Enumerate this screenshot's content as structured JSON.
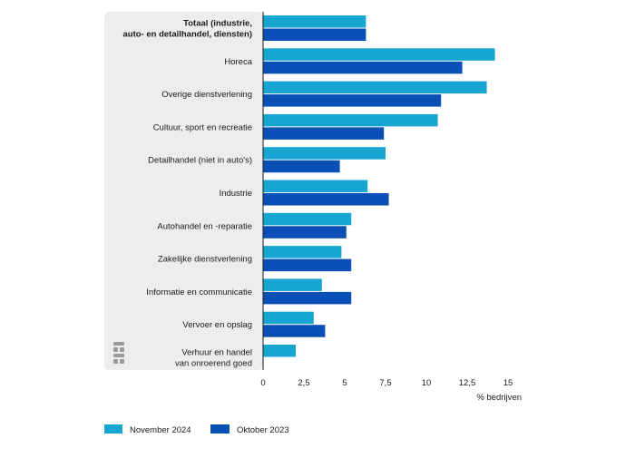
{
  "colors": {
    "series_1": "#17a6d1",
    "series_2": "#0a4fb5",
    "label_panel": "#ededed",
    "axis_line": "#1a1a1a",
    "logo": "#9a9a9a"
  },
  "logo_icon": "cbs-logo-icon",
  "chart_data": {
    "type": "bar",
    "orientation": "horizontal",
    "categories": [
      "Totaal (industrie,\nauto- en detailhandel, diensten)",
      "Horeca",
      "Overige dienstverlening",
      "Cultuur, sport en recreatie",
      "Detailhandel (niet in auto's)",
      "Industrie",
      "Autohandel en -reparatie",
      "Zakelijke dienstverlening",
      "Informatie en communicatie",
      "Vervoer en opslag",
      "Verhuur en handel\nvan onroerend goed"
    ],
    "bold_categories": [
      0
    ],
    "series": [
      {
        "name": "November 2024",
        "values": [
          6.3,
          14.2,
          13.7,
          10.7,
          7.5,
          6.4,
          5.4,
          4.8,
          3.6,
          3.1,
          2.0
        ]
      },
      {
        "name": "Oktober 2023",
        "values": [
          6.3,
          12.2,
          10.9,
          7.4,
          4.7,
          7.7,
          5.1,
          5.4,
          5.4,
          3.8,
          0
        ]
      }
    ],
    "xlabel": "% bedrijven",
    "ylabel": "",
    "xlim": [
      0,
      15
    ],
    "xticks": [
      "0",
      "2,5",
      "5",
      "7,5",
      "10",
      "12,5",
      "15"
    ],
    "xtick_values": [
      0,
      2.5,
      5,
      7.5,
      10,
      12.5,
      15
    ],
    "grid": false,
    "legend_position": "bottom-left"
  }
}
